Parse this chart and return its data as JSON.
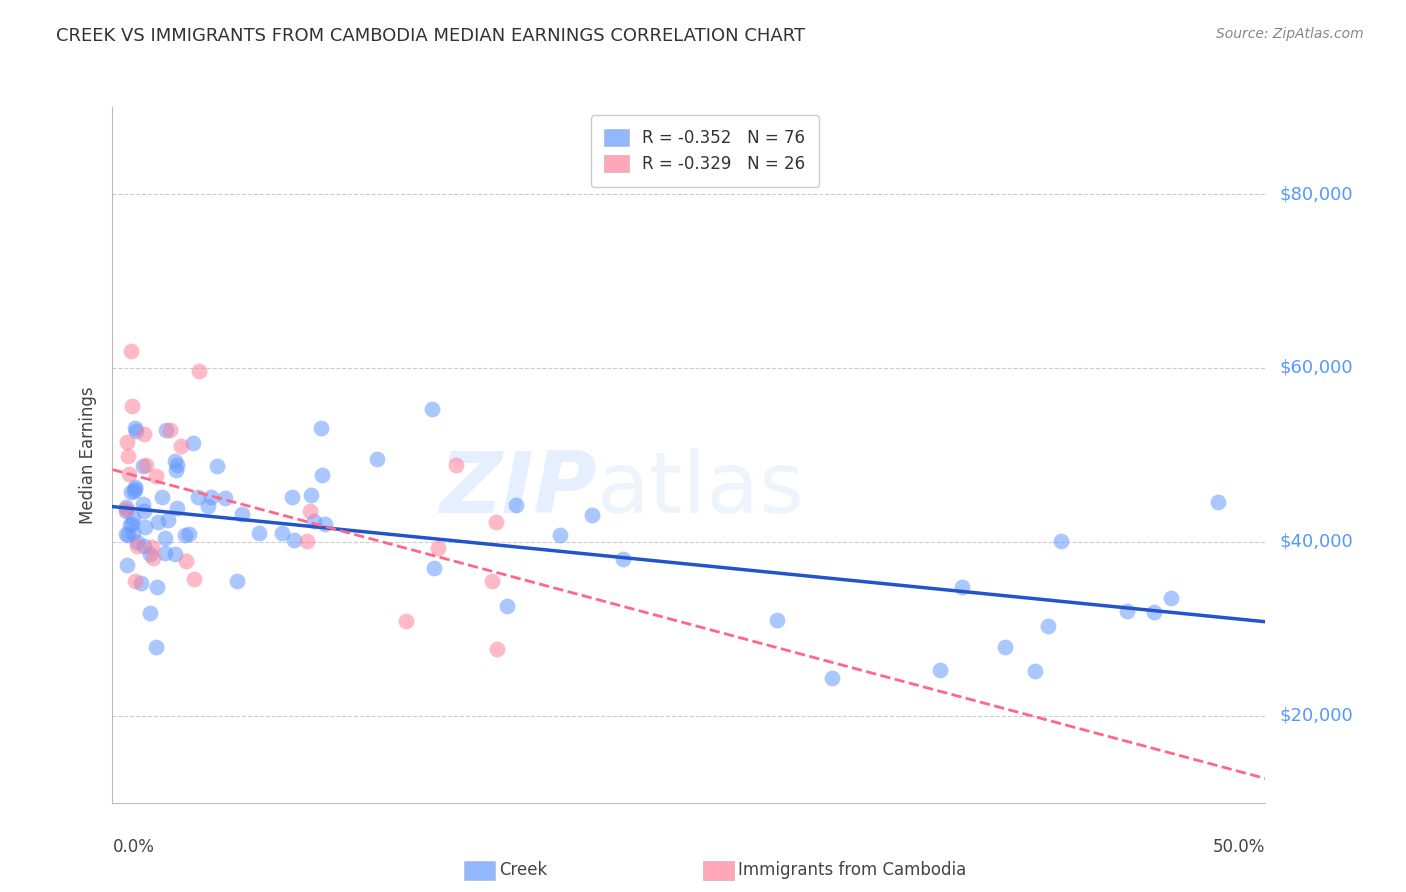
{
  "title": "CREEK VS IMMIGRANTS FROM CAMBODIA MEDIAN EARNINGS CORRELATION CHART",
  "source": "Source: ZipAtlas.com",
  "ylabel": "Median Earnings",
  "legend_creek_r": "R = -0.352",
  "legend_creek_n": "N = 76",
  "legend_camb_r": "R = -0.329",
  "legend_camb_n": "N = 26",
  "creek_color": "#6699ff",
  "camb_color": "#ff8099",
  "creek_line_color": "#2255cc",
  "camb_line_color": "#ff6688",
  "watermark_zip": "ZIP",
  "watermark_atlas": "atlas",
  "xlim": [
    0.0,
    0.5
  ],
  "ylim": [
    10000,
    90000
  ],
  "yticks": [
    20000,
    40000,
    60000,
    80000
  ],
  "right_yticklabels": [
    "$20,000",
    "$40,000",
    "$60,000",
    "$80,000"
  ]
}
